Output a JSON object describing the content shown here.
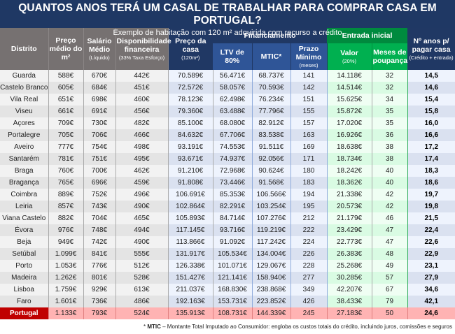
{
  "title": "QUANTOS ANOS TERÁ UM CASAL DE TRABALHAR PARA COMPRAR CASA EM PORTUGAL?",
  "subtitle": "Exemplo de habitação com 120 m² adquirida com recurso a crédito",
  "headers": {
    "distrito": "Distrito",
    "preco_m2": "Preço médio do m²",
    "salario": "Salário Médio",
    "salario_sub": "(Líquido)",
    "disponibilidade": "Disponibilidade financeira",
    "disponibilidade_sub": "(33% Taxa Esforço)",
    "preco_casa": "Preço da casa",
    "preco_casa_sub": "(120m²)",
    "financiamento": "Financiamento",
    "ltv": "LTV de 80%",
    "mtic": "MTIC*",
    "prazo": "Prazo Mínimo",
    "prazo_sub": "(meses)",
    "entrada": "Entrada inicial",
    "valor": "Valor",
    "valor_sub": "(20%)",
    "meses": "Meses de poupança",
    "anos": "Nº anos p/ pagar casa",
    "anos_sub": "(Crédito + entrada)"
  },
  "rows": [
    [
      "Guarda",
      "588€",
      "670€",
      "442€",
      "70.589€",
      "56.471€",
      "68.737€",
      "141",
      "14.118€",
      "32",
      "14,5"
    ],
    [
      "Castelo Branco",
      "605€",
      "684€",
      "451€",
      "72.572€",
      "58.057€",
      "70.593€",
      "142",
      "14.514€",
      "32",
      "14,6"
    ],
    [
      "Vila Real",
      "651€",
      "698€",
      "460€",
      "78.123€",
      "62.498€",
      "76.234€",
      "151",
      "15.625€",
      "34",
      "15,4"
    ],
    [
      "Viseu",
      "661€",
      "691€",
      "456€",
      "79.360€",
      "63.488€",
      "77.796€",
      "155",
      "15.872€",
      "35",
      "15,8"
    ],
    [
      "Açores",
      "709€",
      "730€",
      "482€",
      "85.100€",
      "68.080€",
      "82.912€",
      "157",
      "17.020€",
      "35",
      "16,0"
    ],
    [
      "Portalegre",
      "705€",
      "706€",
      "466€",
      "84.632€",
      "67.706€",
      "83.538€",
      "163",
      "16.926€",
      "36",
      "16,6"
    ],
    [
      "Aveiro",
      "777€",
      "754€",
      "498€",
      "93.191€",
      "74.553€",
      "91.511€",
      "169",
      "18.638€",
      "38",
      "17,2"
    ],
    [
      "Santarém",
      "781€",
      "751€",
      "495€",
      "93.671€",
      "74.937€",
      "92.056€",
      "171",
      "18.734€",
      "38",
      "17,4"
    ],
    [
      "Braga",
      "760€",
      "700€",
      "462€",
      "91.210€",
      "72.968€",
      "90.624€",
      "180",
      "18.242€",
      "40",
      "18,3"
    ],
    [
      "Bragança",
      "765€",
      "696€",
      "459€",
      "91.808€",
      "73.446€",
      "91.568€",
      "183",
      "18.362€",
      "40",
      "18,6"
    ],
    [
      "Coimbra",
      "889€",
      "752€",
      "496€",
      "106.691€",
      "85.353€",
      "106.566€",
      "194",
      "21.338€",
      "42",
      "19,7"
    ],
    [
      "Leiria",
      "857€",
      "743€",
      "490€",
      "102.864€",
      "82.291€",
      "103.254€",
      "195",
      "20.573€",
      "42",
      "19,8"
    ],
    [
      "Viana Castelo",
      "882€",
      "704€",
      "465€",
      "105.893€",
      "84.714€",
      "107.276€",
      "212",
      "21.179€",
      "46",
      "21,5"
    ],
    [
      "Évora",
      "976€",
      "748€",
      "494€",
      "117.145€",
      "93.716€",
      "119.219€",
      "222",
      "23.429€",
      "47",
      "22,4"
    ],
    [
      "Beja",
      "949€",
      "742€",
      "490€",
      "113.866€",
      "91.092€",
      "117.242€",
      "224",
      "22.773€",
      "47",
      "22,6"
    ],
    [
      "Setúbal",
      "1.099€",
      "841€",
      "555€",
      "131.917€",
      "105.534€",
      "134.004€",
      "226",
      "26.383€",
      "48",
      "22,9"
    ],
    [
      "Porto",
      "1.053€",
      "776€",
      "512€",
      "126.338€",
      "101.071€",
      "129.067€",
      "228",
      "25.268€",
      "49",
      "23,1"
    ],
    [
      "Madeira",
      "1.262€",
      "801€",
      "528€",
      "151.427€",
      "121.141€",
      "158.940€",
      "277",
      "30.285€",
      "57",
      "27,9"
    ],
    [
      "Lisboa",
      "1.759€",
      "929€",
      "613€",
      "211.037€",
      "168.830€",
      "238.868€",
      "349",
      "42.207€",
      "67",
      "34,6"
    ],
    [
      "Faro",
      "1.601€",
      "736€",
      "486€",
      "192.163€",
      "153.731€",
      "223.852€",
      "426",
      "38.433€",
      "79",
      "42,1"
    ]
  ],
  "total": [
    "Portugal",
    "1.133€",
    "793€",
    "524€",
    "135.913€",
    "108.731€",
    "144.339€",
    "245",
    "27.183€",
    "50",
    "24,6"
  ],
  "footnote": {
    "term": "MTIC",
    "text": " – Montante Total Imputado ao Consumidor: engloba os custos totais do crédito, incluindo juros, comissões e seguros",
    "mark": "* "
  },
  "colors": {
    "title_bg": "#1f3864",
    "header_gray": "#767171",
    "header_blue": "#2f5597",
    "header_green": "#00b050",
    "total_row": "#ffb3b3",
    "total_label": "#c00000"
  }
}
